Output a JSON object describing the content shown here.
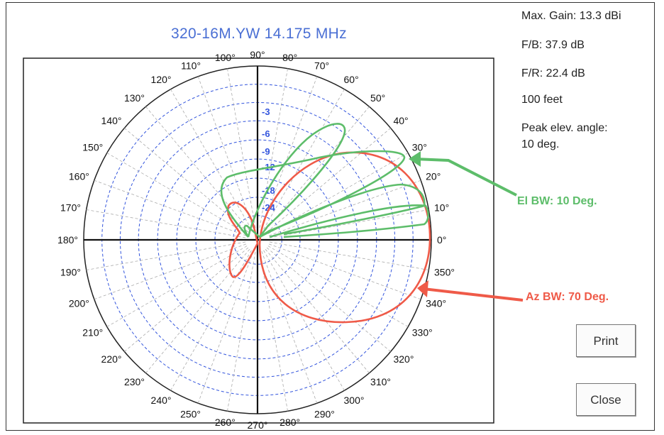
{
  "window": {
    "title": "320-16M.YW  14.175 MHz"
  },
  "info": {
    "max_gain": "Max. Gain: 13.3 dBi",
    "fb": "F/B: 37.9 dB",
    "fr": "F/R: 22.4 dB",
    "height": "100 feet",
    "peak_label": "Peak elev. angle:",
    "peak_value": "10 deg."
  },
  "annotations": {
    "el_bw": "El BW: 10 Deg.",
    "az_bw": "Az BW: 70 Deg.",
    "el_color": "#5dbd6a",
    "az_color": "#ef5a48"
  },
  "buttons": {
    "print": "Print",
    "close": "Close"
  },
  "chart_data": {
    "type": "polar",
    "angle_labels": [
      "0°",
      "10°",
      "20°",
      "30°",
      "40°",
      "50°",
      "60°",
      "70°",
      "80°",
      "90°",
      "100°",
      "110°",
      "120°",
      "130°",
      "140°",
      "150°",
      "160°",
      "170°",
      "180°",
      "190°",
      "200°",
      "210°",
      "220°",
      "230°",
      "240°",
      "250°",
      "260°",
      "270°",
      "280°",
      "290°",
      "300°",
      "310°",
      "320°",
      "330°",
      "340°",
      "350°"
    ],
    "ring_labels": [
      "-3",
      "-6",
      "-9",
      "-12",
      "-18",
      "-24"
    ],
    "grid_color": "#3355dd",
    "series": [
      {
        "color": "#ef5a48",
        "description": "azimuth pattern"
      },
      {
        "color": "#5dbd6a",
        "description": "elevation pattern"
      }
    ]
  }
}
